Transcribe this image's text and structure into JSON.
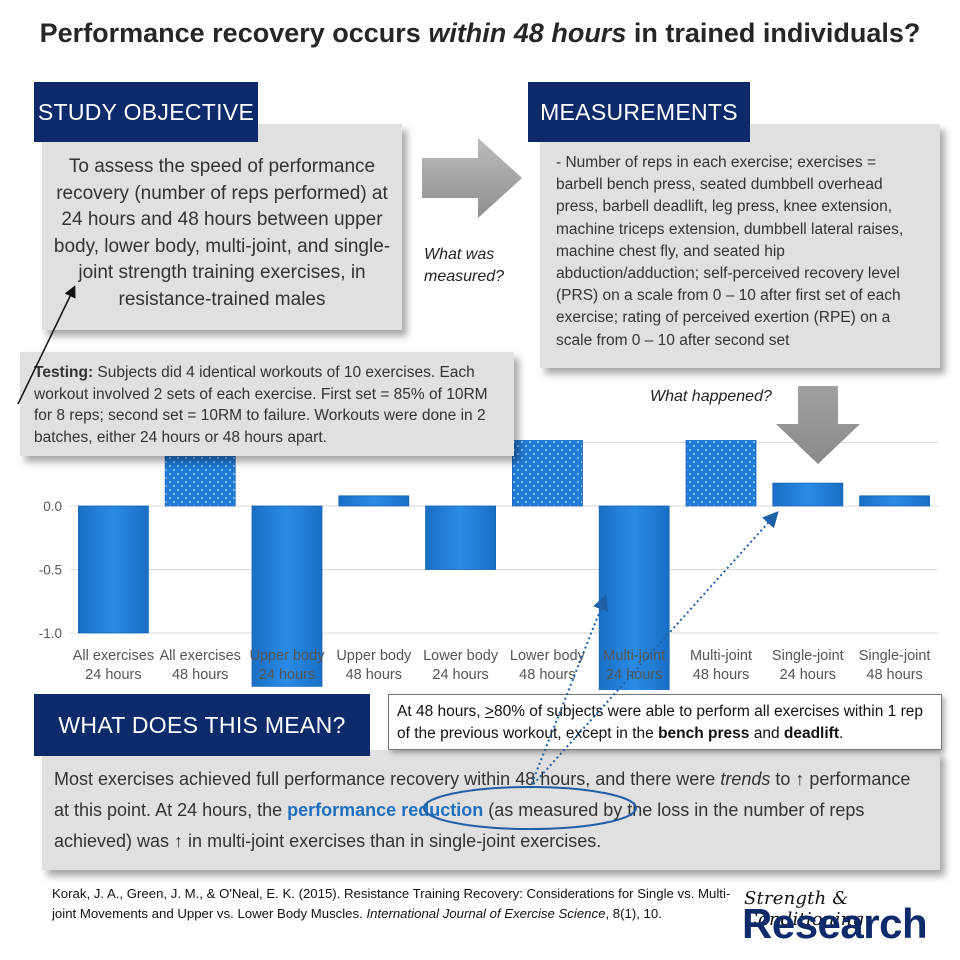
{
  "title": {
    "pre": "Performance recovery occurs ",
    "em": "within 48 hours",
    "post": " in trained individuals?"
  },
  "objective": {
    "heading": "STUDY OBJECTIVE",
    "text": "To assess the speed of performance recovery (number of reps performed) at 24 hours and 48 hours between upper body, lower body, multi-joint, and single-joint strength training exercises, in resistance-trained males"
  },
  "what_measured": [
    "What was",
    "measured?"
  ],
  "measurements": {
    "heading": "MEASUREMENTS",
    "text": "- Number of reps in each exercise; exercises = barbell bench press, seated dumbbell overhead press, barbell deadlift, leg press, knee extension, machine triceps extension, dumbbell lateral raises, machine chest fly, and seated hip abduction/adduction; self-perceived recovery level (PRS) on a scale from 0 – 10 after first set of each exercise; rating of perceived exertion (RPE) on a scale from 0 – 10 after second set"
  },
  "testing": {
    "label": "Testing:",
    "text": " Subjects did 4 identical workouts of 10 exercises. Each workout involved 2 sets of each exercise. First set = 85% of 10RM for 8 reps; second set = 10RM to failure. Workouts were done in 2 batches, either 24 hours or 48 hours apart."
  },
  "what_happened": "What happened?",
  "chart_data": {
    "type": "bar",
    "categories": [
      [
        "All exercises",
        "24 hours"
      ],
      [
        "All exercises",
        "48 hours"
      ],
      [
        "Upper body",
        "24 hours"
      ],
      [
        "Upper body",
        "48 hours"
      ],
      [
        "Lower body",
        "24 hours"
      ],
      [
        "Lower body",
        "48 hours"
      ],
      [
        "Multi-joint",
        "24 hours"
      ],
      [
        "Multi-joint",
        "48 hours"
      ],
      [
        "Single-joint",
        "24 hours"
      ],
      [
        "Single-joint",
        "48 hours"
      ]
    ],
    "values": [
      -1.0,
      0.42,
      -1.42,
      0.08,
      -0.5,
      0.95,
      -1.9,
      0.6,
      0.18,
      0.08
    ],
    "patterned": [
      false,
      true,
      false,
      false,
      false,
      true,
      false,
      true,
      false,
      false
    ],
    "yticks": [
      -2.0,
      -1.5,
      -1.0,
      -0.5,
      0.0,
      0.5
    ],
    "ylim": [
      -2.0,
      1.0
    ],
    "grid": true,
    "bar_color": "#1e7bd6"
  },
  "meaning": {
    "heading": "WHAT DOES THIS MEAN?",
    "p1": "Most exercises achieved full performance recovery within 48 hours, and there were ",
    "trends": "trends",
    "p2": " to ↑ performance at this point. At 24 hours, the ",
    "highlight": "performance reduction",
    "p3": " (as measured by the loss in the number of reps achieved) was ↑ in multi-joint exercises than in single-joint exercises."
  },
  "callout": {
    "p1": "At 48 hours, ",
    "ge": ">",
    "p2": "80% of subjects were able to perform all exercises within 1 rep of the previous workout, except in the ",
    "b1": "bench press",
    "p3": " and ",
    "b2": "deadlift",
    "p4": "."
  },
  "reference": {
    "p1": "Korak, J. A., Green, J. M., & O'Neal, E. K. (2015). Resistance Training Recovery: Considerations for Single vs. Multi-joint Movements and Upper vs. Lower Body Muscles. ",
    "journal": "International Journal of Exercise Science",
    "p2": ", 8(1), 10."
  },
  "logo": {
    "top": "Strength & Conditioning",
    "main": "Research"
  }
}
